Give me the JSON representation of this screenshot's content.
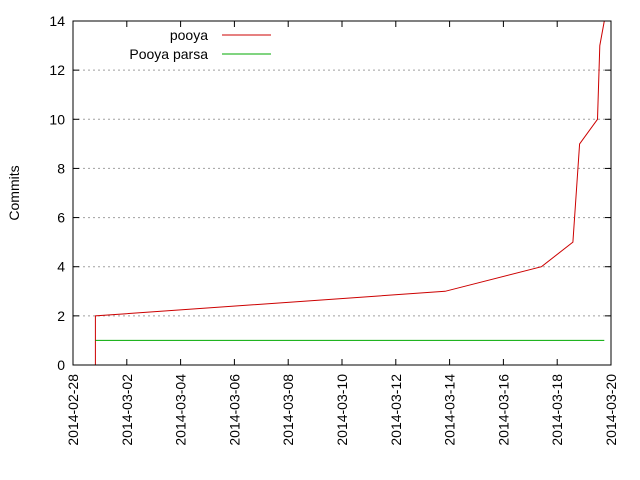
{
  "chart_data": {
    "type": "line",
    "title": "",
    "xlabel": "",
    "ylabel": "Commits",
    "xlim": [
      "2014-02-28",
      "2014-03-20"
    ],
    "ylim": [
      0,
      14
    ],
    "x_ticks": [
      "2014-02-28",
      "2014-03-02",
      "2014-03-04",
      "2014-03-06",
      "2014-03-08",
      "2014-03-10",
      "2014-03-12",
      "2014-03-14",
      "2014-03-16",
      "2014-03-18",
      "2014-03-20"
    ],
    "y_ticks": [
      "0",
      "2",
      "4",
      "6",
      "8",
      "10",
      "12",
      "14"
    ],
    "grid": "horizontal dotted",
    "legend_position": "top-left",
    "series": [
      {
        "name": "pooya",
        "color": "#cc0000",
        "points": [
          {
            "x": "2014-02-28 20:00",
            "y": 0
          },
          {
            "x": "2014-02-28 20:00",
            "y": 2
          },
          {
            "x": "2014-03-13 20:00",
            "y": 3
          },
          {
            "x": "2014-03-17 10:00",
            "y": 4
          },
          {
            "x": "2014-03-18 14:00",
            "y": 5
          },
          {
            "x": "2014-03-18 20:00",
            "y": 9
          },
          {
            "x": "2014-03-19 12:00",
            "y": 10
          },
          {
            "x": "2014-03-19 14:00",
            "y": 13
          },
          {
            "x": "2014-03-19 18:00",
            "y": 14
          }
        ]
      },
      {
        "name": "Pooya parsa",
        "color": "#00aa00",
        "points": [
          {
            "x": "2014-02-28 20:00",
            "y": 1
          },
          {
            "x": "2014-03-19 18:00",
            "y": 1
          }
        ]
      }
    ]
  }
}
